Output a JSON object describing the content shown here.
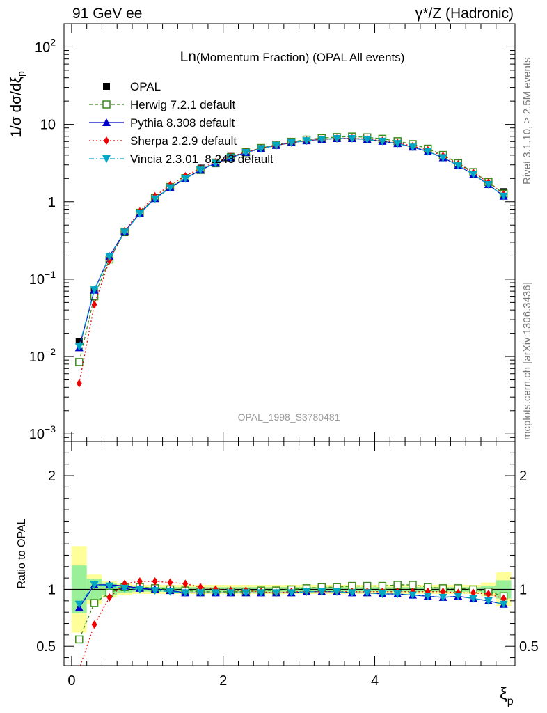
{
  "header": {
    "left": "91 GeV ee",
    "right": "γ*/Z (Hadronic)"
  },
  "side": {
    "rivet": "Rivet 3.1.10, ≥ 2.5M events",
    "mcplots": "mcplots.cern.ch [arXiv:1306.3436]"
  },
  "colors": {
    "data": "#000000",
    "herwig": "#3a8a1a",
    "pythia": "#0000cc",
    "sherpa": "#ee0000",
    "vincia": "#00a6c4",
    "band_inner": "#99f099",
    "band_outer": "#ffff99"
  },
  "chart_data": [
    {
      "type": "scatter",
      "title": "Ln(Momentum Fraction) (OPAL All events)",
      "title_main": "Ln",
      "title_rest": "(Momentum Fraction) (OPAL All events)",
      "watermark": "OPAL_1998_S3780481",
      "ylabel": "1/σ dσ/dξp",
      "yscale": "log",
      "xlim": [
        -0.1,
        5.85
      ],
      "ylim": [
        0.0008,
        200
      ],
      "yticks": [
        {
          "value": 0.001,
          "base": "10",
          "exp": "−3"
        },
        {
          "value": 0.01,
          "base": "10",
          "exp": "−2"
        },
        {
          "value": 0.1,
          "base": "10",
          "exp": "−1"
        },
        {
          "value": 1,
          "base": "1",
          "exp": ""
        },
        {
          "value": 10,
          "base": "10",
          "exp": ""
        },
        {
          "value": 100,
          "base": "10",
          "exp": "2"
        }
      ],
      "legend_position": "top-left",
      "x": [
        0.1,
        0.3,
        0.5,
        0.7,
        0.9,
        1.1,
        1.3,
        1.5,
        1.7,
        1.9,
        2.1,
        2.3,
        2.5,
        2.7,
        2.9,
        3.1,
        3.3,
        3.5,
        3.7,
        3.9,
        4.1,
        4.3,
        4.5,
        4.7,
        4.9,
        5.1,
        5.3,
        5.5,
        5.7
      ],
      "series": [
        {
          "name": "OPAL",
          "key": "data",
          "marker": "square-filled",
          "values": [
            0.0155,
            0.07,
            0.19,
            0.4,
            0.7,
            1.1,
            1.55,
            2.05,
            2.65,
            3.25,
            3.85,
            4.45,
            5.0,
            5.5,
            5.95,
            6.3,
            6.55,
            6.7,
            6.75,
            6.6,
            6.3,
            5.9,
            5.35,
            4.75,
            4.0,
            3.15,
            2.45,
            1.85,
            1.35
          ]
        },
        {
          "name": "Herwig 7.2.1 default",
          "key": "herwig",
          "marker": "square-open",
          "dash": "5,3",
          "values": [
            0.0085,
            0.06,
            0.18,
            0.41,
            0.72,
            1.12,
            1.55,
            2.02,
            2.58,
            3.15,
            3.75,
            4.35,
            4.95,
            5.45,
            5.95,
            6.35,
            6.65,
            6.85,
            6.95,
            6.8,
            6.5,
            6.05,
            5.55,
            4.85,
            4.02,
            3.15,
            2.42,
            1.8,
            1.27
          ]
        },
        {
          "name": "Pythia 8.308 default",
          "key": "pythia",
          "marker": "triangle-up",
          "dash": "",
          "values": [
            0.013,
            0.072,
            0.198,
            0.41,
            0.705,
            1.1,
            1.52,
            1.99,
            2.57,
            3.15,
            3.72,
            4.33,
            4.87,
            5.35,
            5.79,
            6.15,
            6.4,
            6.55,
            6.55,
            6.38,
            6.05,
            5.65,
            5.08,
            4.46,
            3.71,
            2.95,
            2.26,
            1.67,
            1.18
          ]
        },
        {
          "name": "Sherpa 2.2.9 default",
          "key": "sherpa",
          "marker": "diamond",
          "dash": "2,3",
          "values": [
            0.0045,
            0.047,
            0.175,
            0.42,
            0.75,
            1.18,
            1.65,
            2.15,
            2.7,
            3.25,
            3.82,
            4.4,
            4.9,
            5.35,
            5.8,
            6.15,
            6.4,
            6.55,
            6.6,
            6.45,
            6.15,
            5.78,
            5.25,
            4.65,
            3.92,
            3.07,
            2.38,
            1.78,
            1.25
          ]
        },
        {
          "name": "Vincia 2.3.01_8.243 default",
          "key": "vincia",
          "marker": "triangle-down",
          "dash": "7,3,2,3",
          "values": [
            0.0135,
            0.073,
            0.195,
            0.405,
            0.7,
            1.09,
            1.52,
            1.99,
            2.57,
            3.15,
            3.72,
            4.33,
            4.87,
            5.35,
            5.79,
            6.15,
            6.4,
            6.55,
            6.55,
            6.38,
            6.05,
            5.65,
            5.08,
            4.46,
            3.71,
            2.95,
            2.26,
            1.67,
            1.18
          ]
        }
      ]
    },
    {
      "type": "line",
      "ylabel": "Ratio to OPAL",
      "xlabel": "ξp",
      "xlim": [
        -0.1,
        5.85
      ],
      "ylim": [
        0.33,
        2.3
      ],
      "xticks": [
        0,
        2,
        4
      ],
      "xtick_labels": [
        "0",
        "2",
        "4"
      ],
      "yticks": [
        0.5,
        1,
        2
      ],
      "ytick_labels": [
        "0.5",
        "1",
        "2"
      ],
      "x": [
        0.1,
        0.3,
        0.5,
        0.7,
        0.9,
        1.1,
        1.3,
        1.5,
        1.7,
        1.9,
        2.1,
        2.3,
        2.5,
        2.7,
        2.9,
        3.1,
        3.3,
        3.5,
        3.7,
        3.9,
        4.1,
        4.3,
        4.5,
        4.7,
        4.9,
        5.1,
        5.3,
        5.5,
        5.7
      ],
      "band_inner": [
        0.21,
        0.09,
        0.05,
        0.03,
        0.02,
        0.02,
        0.02,
        0.02,
        0.02,
        0.02,
        0.02,
        0.02,
        0.02,
        0.02,
        0.02,
        0.02,
        0.02,
        0.02,
        0.02,
        0.02,
        0.02,
        0.02,
        0.02,
        0.02,
        0.02,
        0.02,
        0.02,
        0.03,
        0.08
      ],
      "band_outer": [
        0.38,
        0.13,
        0.07,
        0.05,
        0.04,
        0.04,
        0.04,
        0.04,
        0.04,
        0.04,
        0.04,
        0.04,
        0.04,
        0.04,
        0.04,
        0.04,
        0.04,
        0.04,
        0.04,
        0.04,
        0.04,
        0.04,
        0.04,
        0.04,
        0.04,
        0.04,
        0.04,
        0.06,
        0.15
      ],
      "series": [
        {
          "name": "Herwig 7.2.1 default",
          "key": "herwig",
          "marker": "square-open",
          "dash": "5,3",
          "values": [
            0.56,
            0.88,
            0.97,
            1.02,
            1.02,
            1.01,
            1.0,
            0.99,
            0.98,
            0.98,
            0.98,
            0.98,
            0.99,
            0.99,
            1.0,
            1.01,
            1.02,
            1.02,
            1.03,
            1.03,
            1.03,
            1.04,
            1.04,
            1.02,
            1.01,
            1.01,
            1.0,
            0.98,
            0.94
          ]
        },
        {
          "name": "Pythia 8.308 default",
          "key": "pythia",
          "marker": "triangle-up",
          "dash": "",
          "values": [
            0.84,
            1.04,
            1.04,
            1.03,
            1.01,
            1.0,
            0.99,
            0.97,
            0.97,
            0.97,
            0.97,
            0.97,
            0.97,
            0.97,
            0.97,
            0.98,
            0.98,
            0.98,
            0.97,
            0.97,
            0.96,
            0.96,
            0.95,
            0.94,
            0.93,
            0.94,
            0.92,
            0.9,
            0.87
          ]
        },
        {
          "name": "Sherpa 2.2.9 default",
          "key": "sherpa",
          "marker": "diamond",
          "dash": "2,3",
          "values": [
            0.3,
            0.69,
            0.93,
            1.05,
            1.07,
            1.07,
            1.06,
            1.05,
            1.02,
            1.0,
            0.99,
            0.99,
            0.98,
            0.97,
            0.98,
            0.98,
            0.98,
            0.98,
            0.98,
            0.98,
            0.98,
            0.98,
            0.98,
            0.98,
            0.98,
            0.97,
            0.97,
            0.96,
            0.92
          ]
        },
        {
          "name": "Vincia 2.3.01_8.243 default",
          "key": "vincia",
          "marker": "triangle-down",
          "dash": "7,3,2,3",
          "values": [
            0.87,
            1.04,
            1.03,
            1.01,
            1.0,
            0.99,
            0.98,
            0.97,
            0.97,
            0.97,
            0.97,
            0.97,
            0.97,
            0.97,
            0.97,
            0.98,
            0.98,
            0.98,
            0.97,
            0.97,
            0.96,
            0.96,
            0.95,
            0.94,
            0.93,
            0.94,
            0.92,
            0.9,
            0.87
          ]
        }
      ]
    }
  ]
}
